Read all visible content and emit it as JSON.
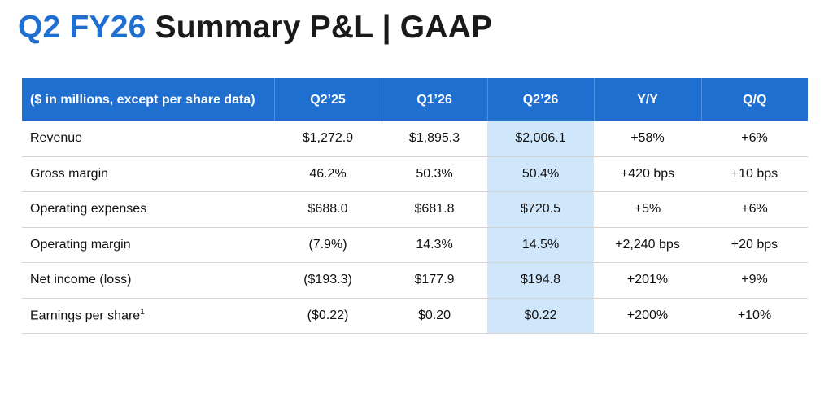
{
  "title": {
    "accent": "Q2 FY26",
    "main": "Summary P&L | GAAP"
  },
  "table": {
    "headers": [
      "($ in millions, except per share data)",
      "Q2’25",
      "Q1’26",
      "Q2’26",
      "Y/Y",
      "Q/Q"
    ],
    "rows": [
      {
        "label": "Revenue",
        "note": "",
        "values": [
          "$1,272.9",
          "$1,895.3",
          "$2,006.1",
          "+58%",
          "+6%"
        ]
      },
      {
        "label": "Gross margin",
        "note": "",
        "values": [
          "46.2%",
          "50.3%",
          "50.4%",
          "+420 bps",
          "+10 bps"
        ]
      },
      {
        "label": "Operating expenses",
        "note": "",
        "values": [
          "$688.0",
          "$681.8",
          "$720.5",
          "+5%",
          "+6%"
        ]
      },
      {
        "label": "Operating margin",
        "note": "",
        "values": [
          "(7.9%)",
          "14.3%",
          "14.5%",
          "+2,240 bps",
          "+20 bps"
        ]
      },
      {
        "label": "Net income (loss)",
        "note": "",
        "values": [
          "($193.3)",
          "$177.9",
          "$194.8",
          "+201%",
          "+9%"
        ]
      },
      {
        "label": "Earnings per share",
        "note": "1",
        "values": [
          "($0.22)",
          "$0.20",
          "$0.22",
          "+200%",
          "+10%"
        ]
      }
    ],
    "highlight_color": "#cfe6fb",
    "header_color": "#1f6fd1"
  }
}
